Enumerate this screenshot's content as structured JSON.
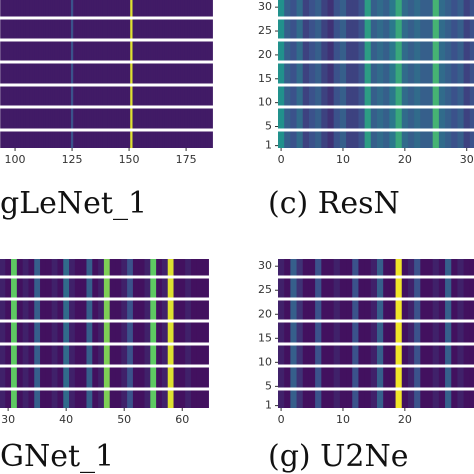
{
  "chart_data": [
    {
      "type": "heatmap",
      "title": "gLeNet_1",
      "colormap": "viridis",
      "x": [
        94,
        95,
        96,
        97,
        98,
        99,
        100,
        101,
        102,
        103,
        104,
        105,
        106,
        107,
        108,
        109,
        110,
        111,
        112,
        113,
        114,
        115,
        116,
        117,
        118,
        119,
        120,
        121,
        122,
        123,
        124,
        125,
        126,
        127,
        128,
        129,
        130,
        131,
        132,
        133,
        134,
        135,
        136,
        137,
        138,
        139,
        140,
        141,
        142,
        143,
        144,
        145,
        146,
        147,
        148,
        149,
        150,
        151,
        152,
        153,
        154,
        155,
        156,
        157,
        158,
        159,
        160,
        161,
        162,
        163,
        164,
        165,
        166,
        167,
        168,
        169,
        170,
        171,
        172,
        173,
        174,
        175,
        176,
        177,
        178,
        179,
        180,
        181,
        182,
        183,
        184,
        185,
        186
      ],
      "values": [
        0.08,
        0.08,
        0.08,
        0.08,
        0.08,
        0.08,
        0.08,
        0.08,
        0.08,
        0.08,
        0.08,
        0.08,
        0.08,
        0.08,
        0.08,
        0.08,
        0.08,
        0.08,
        0.08,
        0.08,
        0.08,
        0.08,
        0.08,
        0.08,
        0.08,
        0.08,
        0.08,
        0.08,
        0.08,
        0.08,
        0.08,
        0.25,
        0.08,
        0.08,
        0.08,
        0.08,
        0.08,
        0.08,
        0.08,
        0.08,
        0.08,
        0.08,
        0.08,
        0.08,
        0.08,
        0.08,
        0.08,
        0.08,
        0.08,
        0.08,
        0.08,
        0.08,
        0.08,
        0.08,
        0.08,
        0.08,
        0.08,
        0.95,
        0.08,
        0.08,
        0.08,
        0.08,
        0.08,
        0.08,
        0.08,
        0.08,
        0.08,
        0.08,
        0.08,
        0.08,
        0.08,
        0.08,
        0.08,
        0.08,
        0.08,
        0.08,
        0.08,
        0.08,
        0.08,
        0.08,
        0.08,
        0.08,
        0.08,
        0.08,
        0.08,
        0.08,
        0.08,
        0.08,
        0.08,
        0.08,
        0.08,
        0.08,
        0.08
      ],
      "xlim": [
        93.4,
        186.8
      ],
      "xticks": [
        100,
        125,
        150,
        175
      ],
      "ylim": [
        0.5,
        31.5
      ]
    },
    {
      "type": "heatmap",
      "title": "(c) ResN",
      "colormap": "viridis",
      "x": [
        0,
        1,
        2,
        3,
        4,
        5,
        6,
        7,
        8,
        9,
        10,
        11,
        12,
        13,
        14,
        15,
        16,
        17,
        18,
        19,
        20,
        21,
        22,
        23,
        24,
        25,
        26,
        27,
        28,
        29,
        30,
        31
      ],
      "values": [
        0.5,
        0.3,
        0.25,
        0.35,
        0.2,
        0.25,
        0.3,
        0.2,
        0.15,
        0.25,
        0.3,
        0.2,
        0.2,
        0.25,
        0.55,
        0.3,
        0.35,
        0.3,
        0.4,
        0.6,
        0.35,
        0.3,
        0.35,
        0.3,
        0.3,
        0.65,
        0.35,
        0.3,
        0.25,
        0.3,
        0.2,
        0.25
      ],
      "xlim": [
        -0.5,
        31.5
      ],
      "xticks": [
        0,
        10,
        20,
        30
      ],
      "ylim": [
        0.5,
        31.5
      ],
      "yticks": [
        30,
        25,
        20,
        15,
        10,
        5,
        1
      ]
    },
    {
      "type": "heatmap",
      "title": "GNet_1",
      "colormap": "viridis",
      "x": [
        29,
        30,
        31,
        32,
        33,
        34,
        35,
        36,
        37,
        38,
        39,
        40,
        41,
        42,
        43,
        44,
        45,
        46,
        47,
        48,
        49,
        50,
        51,
        52,
        53,
        54,
        55,
        56,
        57,
        58,
        59,
        60,
        61,
        62,
        63,
        64
      ],
      "values": [
        0.1,
        0.05,
        0.75,
        0.05,
        0.1,
        0.05,
        0.3,
        0.05,
        0.05,
        0.1,
        0.05,
        0.35,
        0.1,
        0.05,
        0.05,
        0.3,
        0.05,
        0.1,
        0.8,
        0.05,
        0.05,
        0.1,
        0.25,
        0.05,
        0.05,
        0.1,
        0.75,
        0.05,
        0.1,
        0.95,
        0.05,
        0.05,
        0.1,
        0.05,
        0.05,
        0.05
      ],
      "xlim": [
        28.6,
        65.3
      ],
      "xticks": [
        30,
        40,
        50,
        60
      ],
      "ylim": [
        0.5,
        31.5
      ]
    },
    {
      "type": "heatmap",
      "title": "(g) U2Ne",
      "colormap": "viridis",
      "x": [
        0,
        1,
        2,
        3,
        4,
        5,
        6,
        7,
        8,
        9,
        10,
        11,
        12,
        13,
        14,
        15,
        16,
        17,
        18,
        19,
        20,
        21,
        22,
        23,
        24,
        25,
        26,
        27,
        28,
        29,
        30,
        31
      ],
      "values": [
        0.1,
        0.05,
        0.3,
        0.15,
        0.05,
        0.05,
        0.25,
        0.05,
        0.05,
        0.1,
        0.05,
        0.05,
        0.25,
        0.05,
        0.05,
        0.1,
        0.3,
        0.05,
        0.05,
        0.98,
        0.05,
        0.1,
        0.25,
        0.05,
        0.05,
        0.1,
        0.05,
        0.3,
        0.05,
        0.1,
        0.05,
        0.05
      ],
      "xlim": [
        -0.5,
        31.5
      ],
      "xticks": [
        0,
        10,
        20
      ],
      "ylim": [
        0.5,
        31.5
      ],
      "yticks": [
        30,
        25,
        20,
        15,
        10,
        5,
        1
      ]
    }
  ]
}
